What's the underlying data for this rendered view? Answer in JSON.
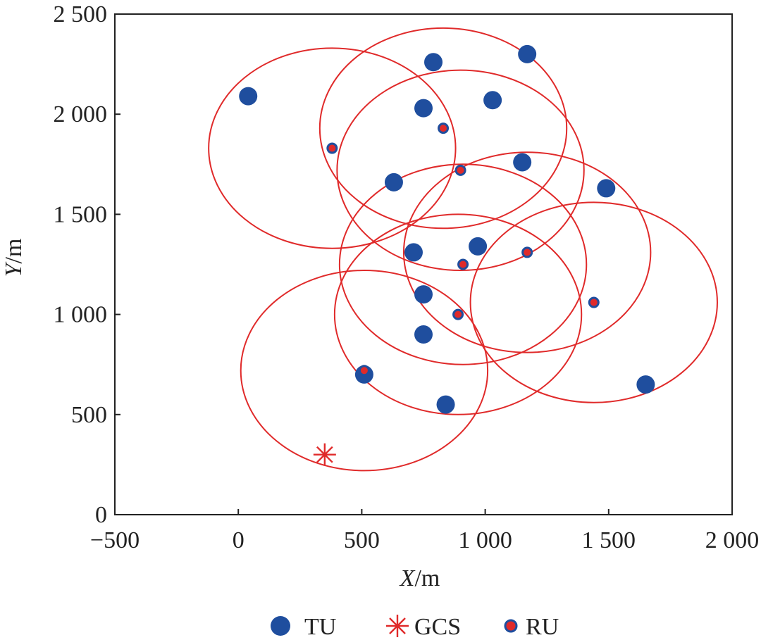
{
  "chart_data": {
    "type": "scatter",
    "xlabel_var": "X",
    "xlabel_unit": "/m",
    "ylabel_var": "Y",
    "ylabel_unit": "/m",
    "xlim": [
      -500,
      2000
    ],
    "ylim": [
      0,
      2500
    ],
    "x_ticks": [
      -500,
      0,
      500,
      1000,
      1500,
      2000
    ],
    "x_tick_labels": [
      "−500",
      "0",
      "500",
      "1 000",
      "1 500",
      "2 000"
    ],
    "y_ticks": [
      0,
      500,
      1000,
      1500,
      2000,
      2500
    ],
    "y_tick_labels": [
      "0",
      "500",
      "1 000",
      "1 500",
      "2 000",
      "2 500"
    ],
    "grid": false,
    "legend_position": "bottom",
    "series": [
      {
        "name": "TU",
        "marker": "filled-circle",
        "color": "#1f4e9e",
        "points": [
          [
            40,
            2090
          ],
          [
            790,
            2260
          ],
          [
            1170,
            2300
          ],
          [
            750,
            2030
          ],
          [
            1030,
            2070
          ],
          [
            630,
            1660
          ],
          [
            1150,
            1760
          ],
          [
            1490,
            1630
          ],
          [
            710,
            1310
          ],
          [
            970,
            1340
          ],
          [
            750,
            1100
          ],
          [
            750,
            900
          ],
          [
            510,
            700
          ],
          [
            840,
            550
          ],
          [
            1650,
            650
          ]
        ]
      },
      {
        "name": "GCS",
        "marker": "asterisk",
        "color": "#e02a2a",
        "points": [
          [
            350,
            300
          ]
        ]
      },
      {
        "name": "RU",
        "marker": "red-dot-blue-ring",
        "color": "#e02a2a",
        "ring_color": "#1f4e9e",
        "coverage_radius": 500,
        "points": [
          [
            380,
            1830
          ],
          [
            830,
            1930
          ],
          [
            900,
            1720
          ],
          [
            910,
            1250
          ],
          [
            1170,
            1310
          ],
          [
            890,
            1000
          ],
          [
            1440,
            1060
          ],
          [
            510,
            720
          ]
        ]
      }
    ],
    "legend": [
      {
        "label": "TU",
        "marker": "filled-circle"
      },
      {
        "label": "GCS",
        "marker": "asterisk"
      },
      {
        "label": "RU",
        "marker": "red-dot-blue-ring"
      }
    ]
  }
}
